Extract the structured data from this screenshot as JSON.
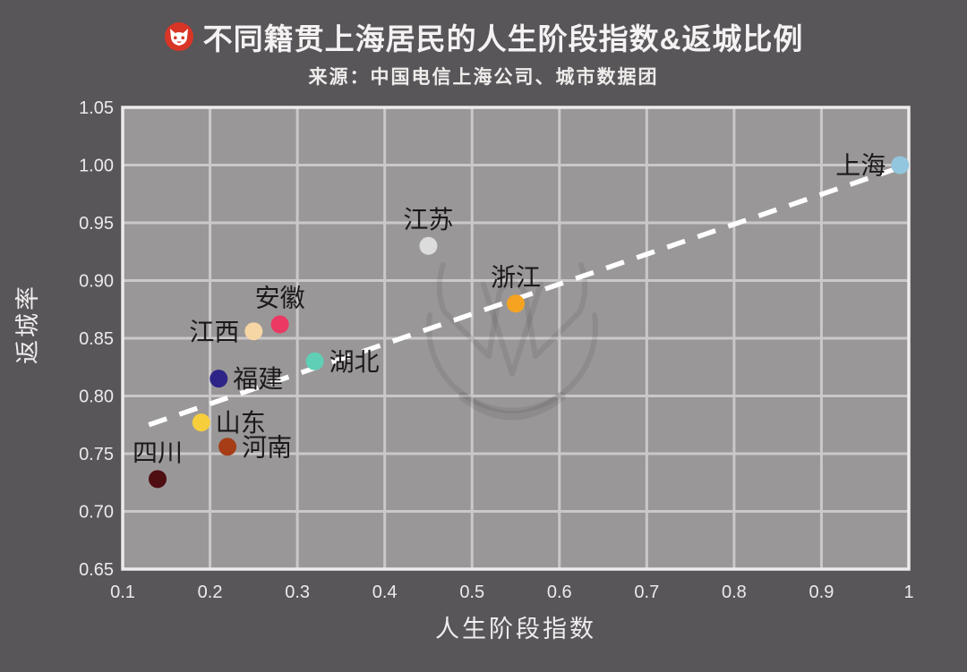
{
  "chart_data": {
    "type": "scatter",
    "title": "不同籍贯上海居民的人生阶段指数&返城比例",
    "source": "来源：中国电信上海公司、城市数据团",
    "xlabel": "人生阶段指数",
    "ylabel": "返城率",
    "xlim": [
      0.1,
      1.0
    ],
    "ylim": [
      0.65,
      1.05
    ],
    "x_ticks": [
      "0.1",
      "0.2",
      "0.3",
      "0.4",
      "0.5",
      "0.6",
      "0.7",
      "0.8",
      "0.9",
      "1"
    ],
    "y_ticks": [
      "0.65",
      "0.70",
      "0.75",
      "0.80",
      "0.85",
      "0.90",
      "0.95",
      "1.00",
      "1.05"
    ],
    "grid": true,
    "legend": "none",
    "points": [
      {
        "label": "上海",
        "x": 0.99,
        "y": 1.0,
        "color": "#92c6de",
        "label_position": "left"
      },
      {
        "label": "江苏",
        "x": 0.45,
        "y": 0.93,
        "color": "#dcdcdc",
        "label_position": "above"
      },
      {
        "label": "浙江",
        "x": 0.55,
        "y": 0.88,
        "color": "#f5a321",
        "label_position": "above"
      },
      {
        "label": "安徽",
        "x": 0.28,
        "y": 0.862,
        "color": "#ea3a63",
        "label_position": "above"
      },
      {
        "label": "江西",
        "x": 0.25,
        "y": 0.856,
        "color": "#f5d6a4",
        "label_position": "left"
      },
      {
        "label": "湖北",
        "x": 0.32,
        "y": 0.83,
        "color": "#5fd0b6",
        "label_position": "right"
      },
      {
        "label": "福建",
        "x": 0.21,
        "y": 0.815,
        "color": "#2e2487",
        "label_position": "right"
      },
      {
        "label": "山东",
        "x": 0.19,
        "y": 0.777,
        "color": "#f6ce3c",
        "label_position": "right"
      },
      {
        "label": "河南",
        "x": 0.22,
        "y": 0.756,
        "color": "#a63d17",
        "label_position": "right"
      },
      {
        "label": "四川",
        "x": 0.14,
        "y": 0.728,
        "color": "#4e0e12",
        "label_position": "above"
      }
    ],
    "trendline": {
      "style": "dashed",
      "color": "#ffffff",
      "x1": 0.13,
      "y1": 0.775,
      "x2": 0.99,
      "y2": 0.998
    }
  },
  "colors": {
    "background": "#585659",
    "plot_background": "#9a9798",
    "gridline": "#cbc8c9",
    "plot_border": "#edebeb",
    "axis_text": "#eceaea",
    "point_label_text": "#1c191a",
    "logo_red": "#d93526",
    "watermark": "rgba(40,35,36,0.10)"
  },
  "icons": {
    "brand_logo": "fox-face-in-red-circle",
    "watermark_logo": "m-crest-in-circle"
  }
}
